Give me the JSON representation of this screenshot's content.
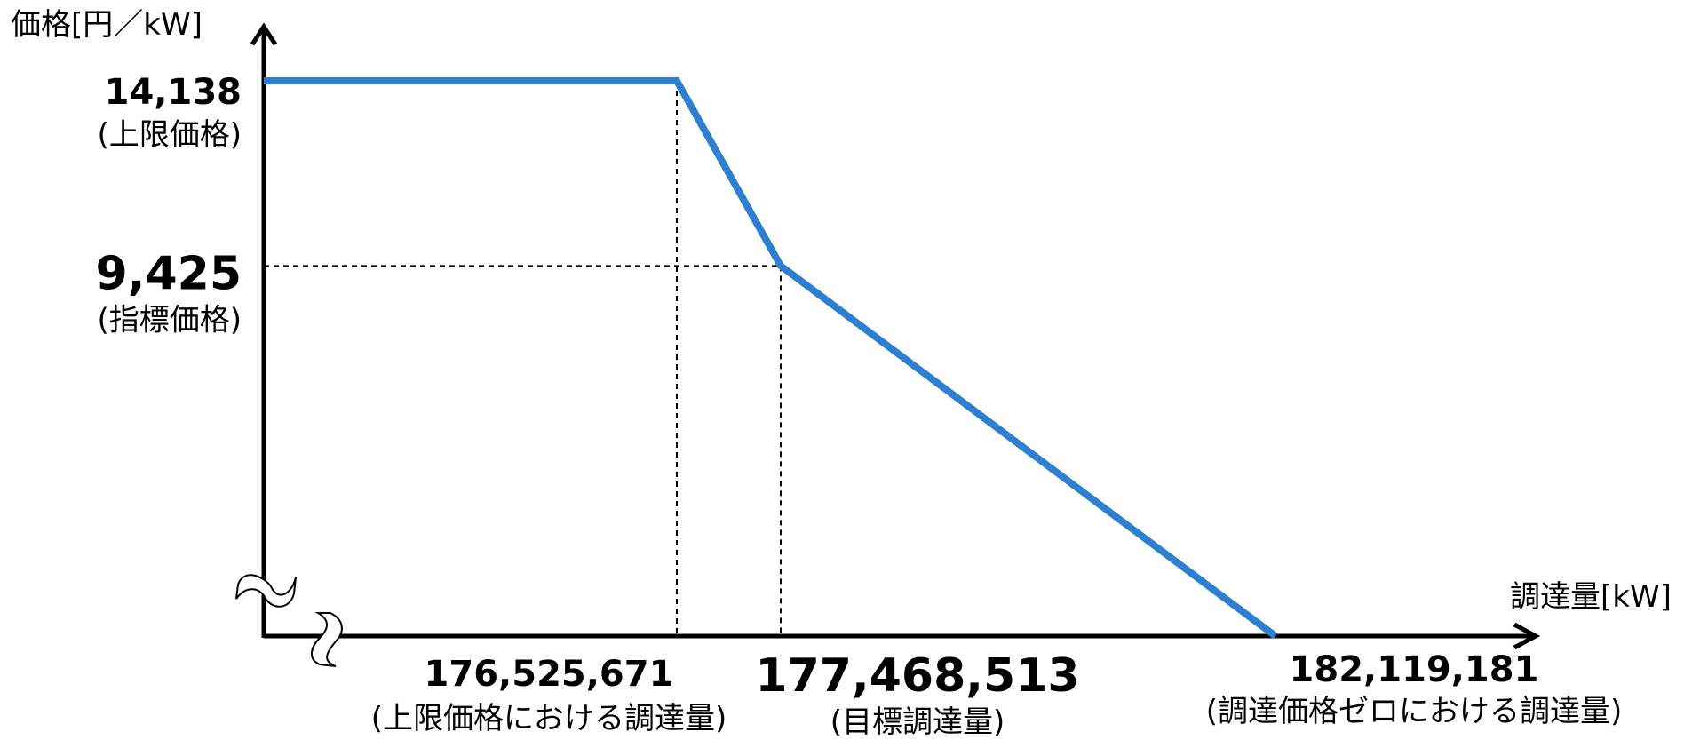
{
  "chart_data": {
    "type": "line",
    "ylabel": "価格[円／kW]",
    "xlabel": "調達量[kW]",
    "axis_break": true,
    "grid": false,
    "line_color": "#2F7FD1",
    "series": [
      {
        "x": [
          176000000,
          176525671,
          177468513,
          182119181
        ],
        "y": [
          14138,
          14138,
          9425,
          0
        ]
      }
    ],
    "y_ticks": [
      {
        "value": 14138,
        "label": "14,138",
        "note": "(上限価格)"
      },
      {
        "value": 9425,
        "label": "9,425",
        "note": "(指標価格)"
      }
    ],
    "x_ticks": [
      {
        "value": 176525671,
        "label": "176,525,671",
        "note": "(上限価格における調達量)"
      },
      {
        "value": 177468513,
        "label": "177,468,513",
        "note": "(目標調達量)"
      },
      {
        "value": 182119181,
        "label": "182,119,181",
        "note": "(調達価格ゼロにおける調達量)"
      }
    ]
  }
}
